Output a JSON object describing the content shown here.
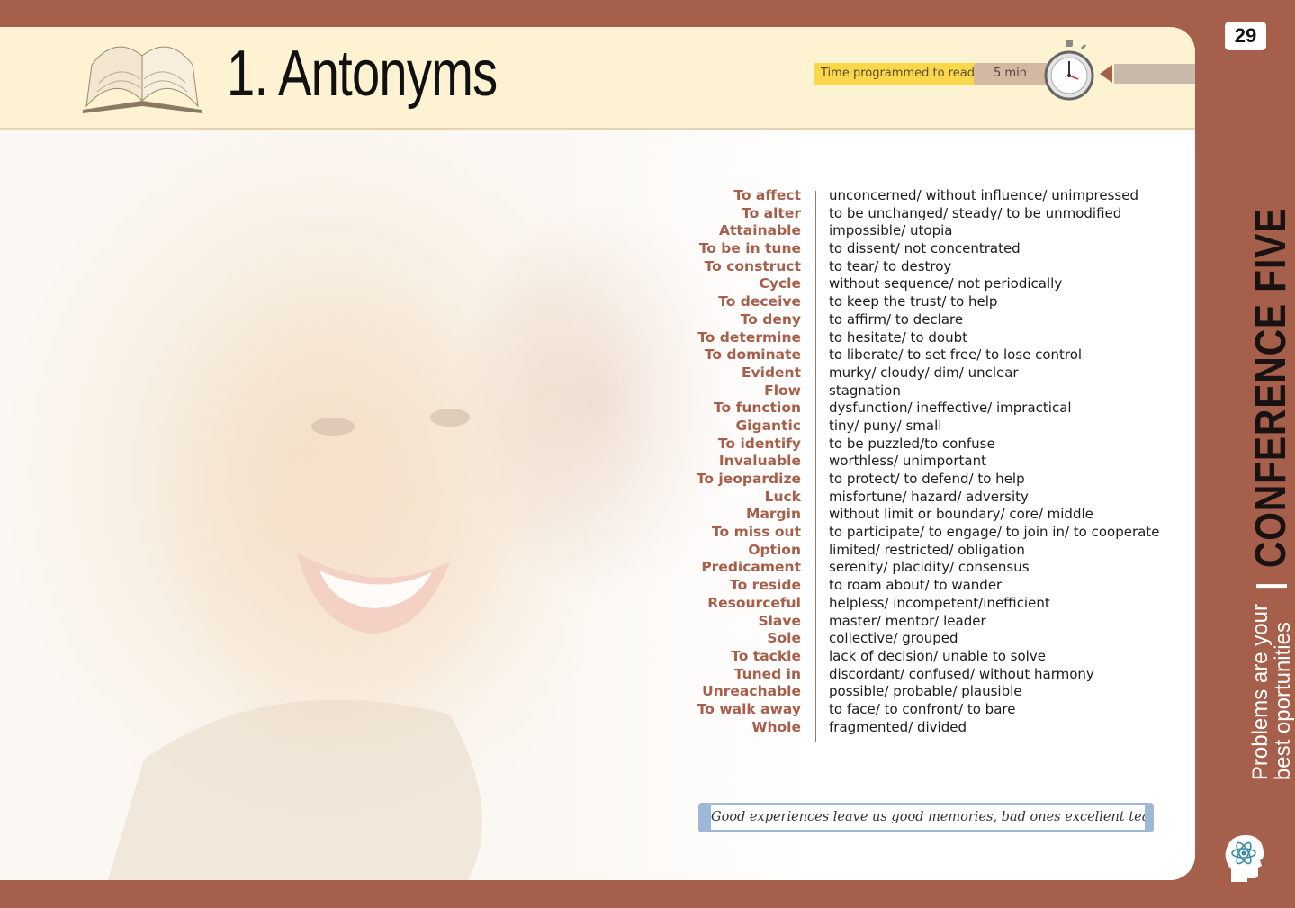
{
  "page_number": "29",
  "title": "1. Antonyms",
  "time": {
    "label": "Time programmed to read:",
    "value": "5 min"
  },
  "sidebar": {
    "chapter": "CONFERENCE FIVE",
    "subtitle_line1": "Problems are your",
    "subtitle_line2": "best oportunities"
  },
  "words": [
    "To affect",
    "To alter",
    "Attainable",
    "To be in tune",
    "To construct",
    "Cycle",
    "To deceive",
    "To deny",
    "To determine",
    "To dominate",
    "Evident",
    "Flow",
    "To function",
    "Gigantic",
    "To identify",
    "Invaluable",
    "To jeopardize",
    "Luck",
    "Margin",
    "To miss out",
    "Option",
    "Predicament",
    "To reside",
    "Resourceful",
    "Slave",
    "Sole",
    "To tackle",
    "Tuned in",
    "Unreachable",
    "To walk away",
    "Whole"
  ],
  "antonyms": [
    "unconcerned/ without influence/ unimpressed",
    "to be unchanged/ steady/ to be unmodified",
    "impossible/ utopia",
    "to dissent/ not concentrated",
    "to tear/ to destroy",
    "without sequence/ not periodically",
    "to keep the trust/ to help",
    "to affirm/ to declare",
    "to hesitate/ to doubt",
    "to liberate/ to set free/ to lose control",
    "murky/ cloudy/ dim/ unclear",
    "stagnation",
    "dysfunction/ ineffective/ impractical",
    "tiny/ puny/ small",
    "to be puzzled/to confuse",
    "worthless/ unimportant",
    "to protect/ to defend/ to help",
    "misfortune/ hazard/ adversity",
    "without limit or boundary/ core/ middle",
    "to participate/ to engage/ to join in/ to cooperate",
    "limited/ restricted/ obligation",
    "serenity/ placidity/ consensus",
    "to roam about/ to wander",
    "helpless/ incompetent/inefficient",
    "master/ mentor/ leader",
    "collective/ grouped",
    "lack of decision/ unable to solve",
    "discordant/ confused/ without harmony",
    "possible/ probable/ plausible",
    "to face/ to confront/ to bare",
    "fragmented/ divided"
  ],
  "quote": "Good experiences leave us good memories, bad ones excellent teachings.",
  "colors": {
    "accent": "#a65f4b",
    "header_bg": "#fdf2d2",
    "time_pill": "#fbd84b",
    "quote_border": "#9fb8d6"
  }
}
